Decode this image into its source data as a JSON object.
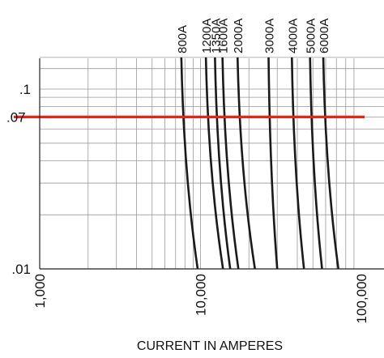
{
  "chart_data": {
    "type": "line",
    "title": "",
    "xlabel": "CURRENT IN AMPERES",
    "ylabel": "",
    "x_scale": "log",
    "y_scale": "log",
    "xlim": [
      1000,
      100000
    ],
    "ylim": [
      0.01,
      0.15
    ],
    "grid": true,
    "x_ticks": [
      {
        "value": 1000,
        "label": "1,000"
      },
      {
        "value": 10000,
        "label": "10,000"
      },
      {
        "value": 100000,
        "label": "100,000"
      }
    ],
    "y_ticks": [
      {
        "value": 0.1,
        "label": ".1"
      },
      {
        "value": 0.01,
        "label": ".01"
      }
    ],
    "reference_line": {
      "y": 0.07,
      "label": ".07",
      "color": "#e8231c"
    },
    "series": [
      {
        "name": "800A",
        "points": [
          [
            7600,
            0.15
          ],
          [
            9600,
            0.01
          ]
        ]
      },
      {
        "name": "1200A",
        "points": [
          [
            10800,
            0.15
          ],
          [
            13800,
            0.01
          ]
        ]
      },
      {
        "name": "1350A",
        "points": [
          [
            12300,
            0.15
          ],
          [
            15300,
            0.01
          ]
        ]
      },
      {
        "name": "1600A",
        "points": [
          [
            13700,
            0.15
          ],
          [
            17200,
            0.01
          ]
        ]
      },
      {
        "name": "2000A",
        "points": [
          [
            17000,
            0.15
          ],
          [
            21800,
            0.01
          ]
        ]
      },
      {
        "name": "3000A",
        "points": [
          [
            26500,
            0.15
          ],
          [
            30000,
            0.01
          ]
        ]
      },
      {
        "name": "4000A",
        "points": [
          [
            37000,
            0.15
          ],
          [
            44000,
            0.01
          ]
        ]
      },
      {
        "name": "5000A",
        "points": [
          [
            48000,
            0.15
          ],
          [
            57000,
            0.01
          ]
        ]
      },
      {
        "name": "6000A",
        "points": [
          [
            58000,
            0.15
          ],
          [
            72000,
            0.01
          ]
        ]
      }
    ]
  },
  "colors": {
    "curve": "#1a1a1a",
    "grid": "#9a9a9a",
    "reference": "#e8231c"
  }
}
